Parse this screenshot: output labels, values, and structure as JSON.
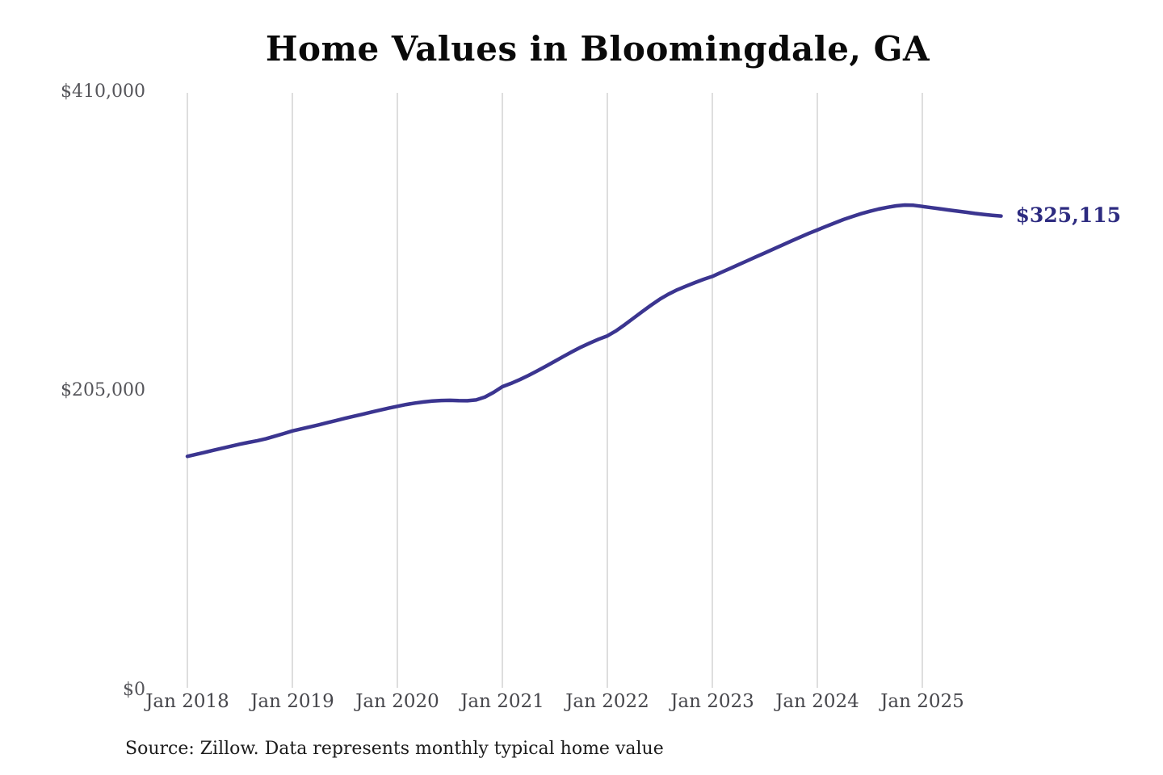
{
  "page": {
    "background_color": "#ffffff"
  },
  "chart_data": {
    "type": "line",
    "title": "Home Values in Bloomingdale, GA",
    "xlabel": "",
    "ylabel": "",
    "ylim": [
      0,
      410000
    ],
    "grid": "vertical-only",
    "legend": "none",
    "line_color": "#3b3590",
    "grid_color": "#c9c9c9",
    "end_label_color": "#2d2b80",
    "end_label": "$325,115",
    "final_value": 325115,
    "source_note": "Source: Zillow. Data represents monthly typical home value",
    "y_ticks": [
      {
        "label": "$0",
        "value": 0
      },
      {
        "label": "$205,000",
        "value": 205000
      },
      {
        "label": "$410,000",
        "value": 410000
      }
    ],
    "x_ticks": [
      {
        "label": "Jan 2018"
      },
      {
        "label": "Jan 2019"
      },
      {
        "label": "Jan 2020"
      },
      {
        "label": "Jan 2021"
      },
      {
        "label": "Jan 2022"
      },
      {
        "label": "Jan 2023"
      },
      {
        "label": "Jan 2024"
      },
      {
        "label": "Jan 2025"
      }
    ],
    "series": [
      {
        "name": "Monthly typical home value",
        "start_month": "2018-01",
        "frequency": "monthly",
        "values": [
          159500,
          160900,
          162300,
          163700,
          165100,
          166500,
          167900,
          169100,
          170300,
          171700,
          173400,
          175200,
          177000,
          178400,
          179800,
          181200,
          182700,
          184200,
          185700,
          187100,
          188500,
          189900,
          191300,
          192700,
          194000,
          195200,
          196200,
          197000,
          197600,
          198000,
          198100,
          197900,
          197800,
          198400,
          200300,
          203600,
          207500,
          209800,
          212400,
          215300,
          218400,
          221700,
          225000,
          228400,
          231700,
          234800,
          237600,
          240200,
          242500,
          246000,
          250300,
          254800,
          259300,
          263700,
          267800,
          271300,
          274300,
          276800,
          279200,
          281500,
          283500,
          286200,
          288900,
          291600,
          294300,
          297000,
          299700,
          302400,
          305100,
          307800,
          310500,
          313100,
          315500,
          318000,
          320400,
          322700,
          324800,
          326700,
          328400,
          329900,
          331100,
          332100,
          332700,
          332500,
          331700,
          330900,
          330100,
          329300,
          328500,
          327700,
          326900,
          326200,
          325600,
          325115
        ]
      }
    ]
  }
}
